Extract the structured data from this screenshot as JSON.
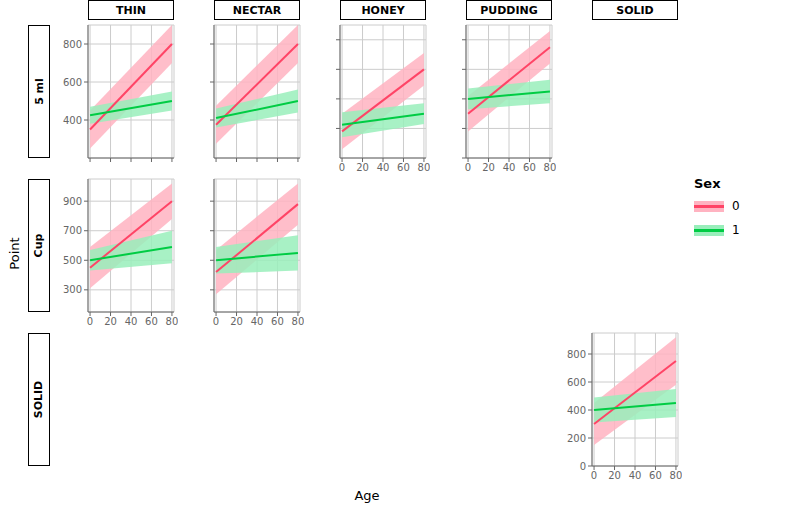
{
  "chart_data": {
    "type": "line",
    "x_label": "Age",
    "y_label": "Point",
    "legend_title": "Sex",
    "column_labels": [
      "THIN",
      "NECTAR",
      "HONEY",
      "PUDDING",
      "SOLID"
    ],
    "row_labels": [
      "5 ml",
      "Cup",
      "SOLID"
    ],
    "xlim": [
      -2,
      82
    ],
    "xticks": [
      0,
      20,
      40,
      60,
      80
    ],
    "grid": true,
    "series": [
      {
        "name": "0",
        "color": "#FF4466",
        "band_color": "#FFB3C1"
      },
      {
        "name": "1",
        "color": "#00CC44",
        "band_color": "#99EEBB"
      }
    ],
    "panels": [
      {
        "row": "5 ml",
        "column": "THIN",
        "x": [
          0,
          80
        ],
        "series": [
          {
            "values": [
              350,
              800
            ],
            "low": [
              250,
              700
            ],
            "high": [
              450,
              900
            ]
          },
          {
            "values": [
              425,
              500
            ],
            "low": [
              380,
              450
            ],
            "high": [
              470,
              550
            ]
          }
        ],
        "ylim": [
          200,
          900
        ],
        "yticks": [
          400,
          600,
          800
        ],
        "tick_labels": "y"
      },
      {
        "row": "5 ml",
        "column": "NECTAR",
        "x": [
          0,
          80
        ],
        "series": [
          {
            "values": [
              375,
              800
            ],
            "low": [
              275,
              700
            ],
            "high": [
              475,
              900
            ]
          },
          {
            "values": [
              410,
              500
            ],
            "low": [
              360,
              440
            ],
            "high": [
              460,
              560
            ]
          }
        ],
        "ylim": [
          200,
          900
        ],
        "yticks": [
          400,
          600,
          800
        ],
        "tick_labels": false
      },
      {
        "row": "5 ml",
        "column": "HONEY",
        "x": [
          0,
          80
        ],
        "series": [
          {
            "values": [
              380,
              800
            ],
            "low": [
              260,
              690
            ],
            "high": [
              500,
              910
            ]
          },
          {
            "values": [
              425,
              500
            ],
            "low": [
              340,
              430
            ],
            "high": [
              510,
              570
            ]
          }
        ],
        "ylim": [
          200,
          1100
        ],
        "yticks": [
          400,
          600,
          800,
          1000
        ],
        "tick_labels": "x"
      },
      {
        "row": "5 ml",
        "column": "PUDDING",
        "x": [
          0,
          80
        ],
        "series": [
          {
            "values": [
              300,
              750
            ],
            "low": [
              180,
              640
            ],
            "high": [
              420,
              860
            ]
          },
          {
            "values": [
              400,
              450
            ],
            "low": [
              330,
              370
            ],
            "high": [
              470,
              530
            ]
          }
        ],
        "ylim": [
          0,
          900
        ],
        "yticks": [
          0,
          200,
          400,
          600,
          800
        ],
        "tick_labels": "x"
      },
      {
        "row": "Cup",
        "column": "THIN",
        "x": [
          0,
          80
        ],
        "series": [
          {
            "values": [
              450,
              900
            ],
            "low": [
              310,
              780
            ],
            "high": [
              590,
              1020
            ]
          },
          {
            "values": [
              500,
              590
            ],
            "low": [
              430,
              480
            ],
            "high": [
              570,
              700
            ]
          }
        ],
        "ylim": [
          150,
          1050
        ],
        "yticks": [
          300,
          500,
          700,
          900
        ]
      },
      {
        "row": "Cup",
        "column": "NECTAR",
        "x": [
          0,
          80
        ],
        "series": [
          {
            "values": [
              420,
              880
            ],
            "low": [
              270,
              740
            ],
            "high": [
              570,
              1020
            ]
          },
          {
            "values": [
              500,
              550
            ],
            "low": [
              410,
              430
            ],
            "high": [
              590,
              670
            ]
          }
        ],
        "ylim": [
          150,
          1050
        ],
        "yticks": [
          300,
          500,
          700,
          900
        ],
        "tick_labels": "x"
      },
      {
        "row": "SOLID",
        "column": "SOLID",
        "x": [
          0,
          80
        ],
        "series": [
          {
            "values": [
              300,
              750
            ],
            "low": [
              150,
              580
            ],
            "high": [
              450,
              920
            ]
          },
          {
            "values": [
              400,
              450
            ],
            "low": [
              310,
              350
            ],
            "high": [
              490,
              550
            ]
          }
        ],
        "ylim": [
          0,
          950
        ],
        "yticks": [
          0,
          200,
          400,
          600,
          800
        ]
      }
    ]
  }
}
